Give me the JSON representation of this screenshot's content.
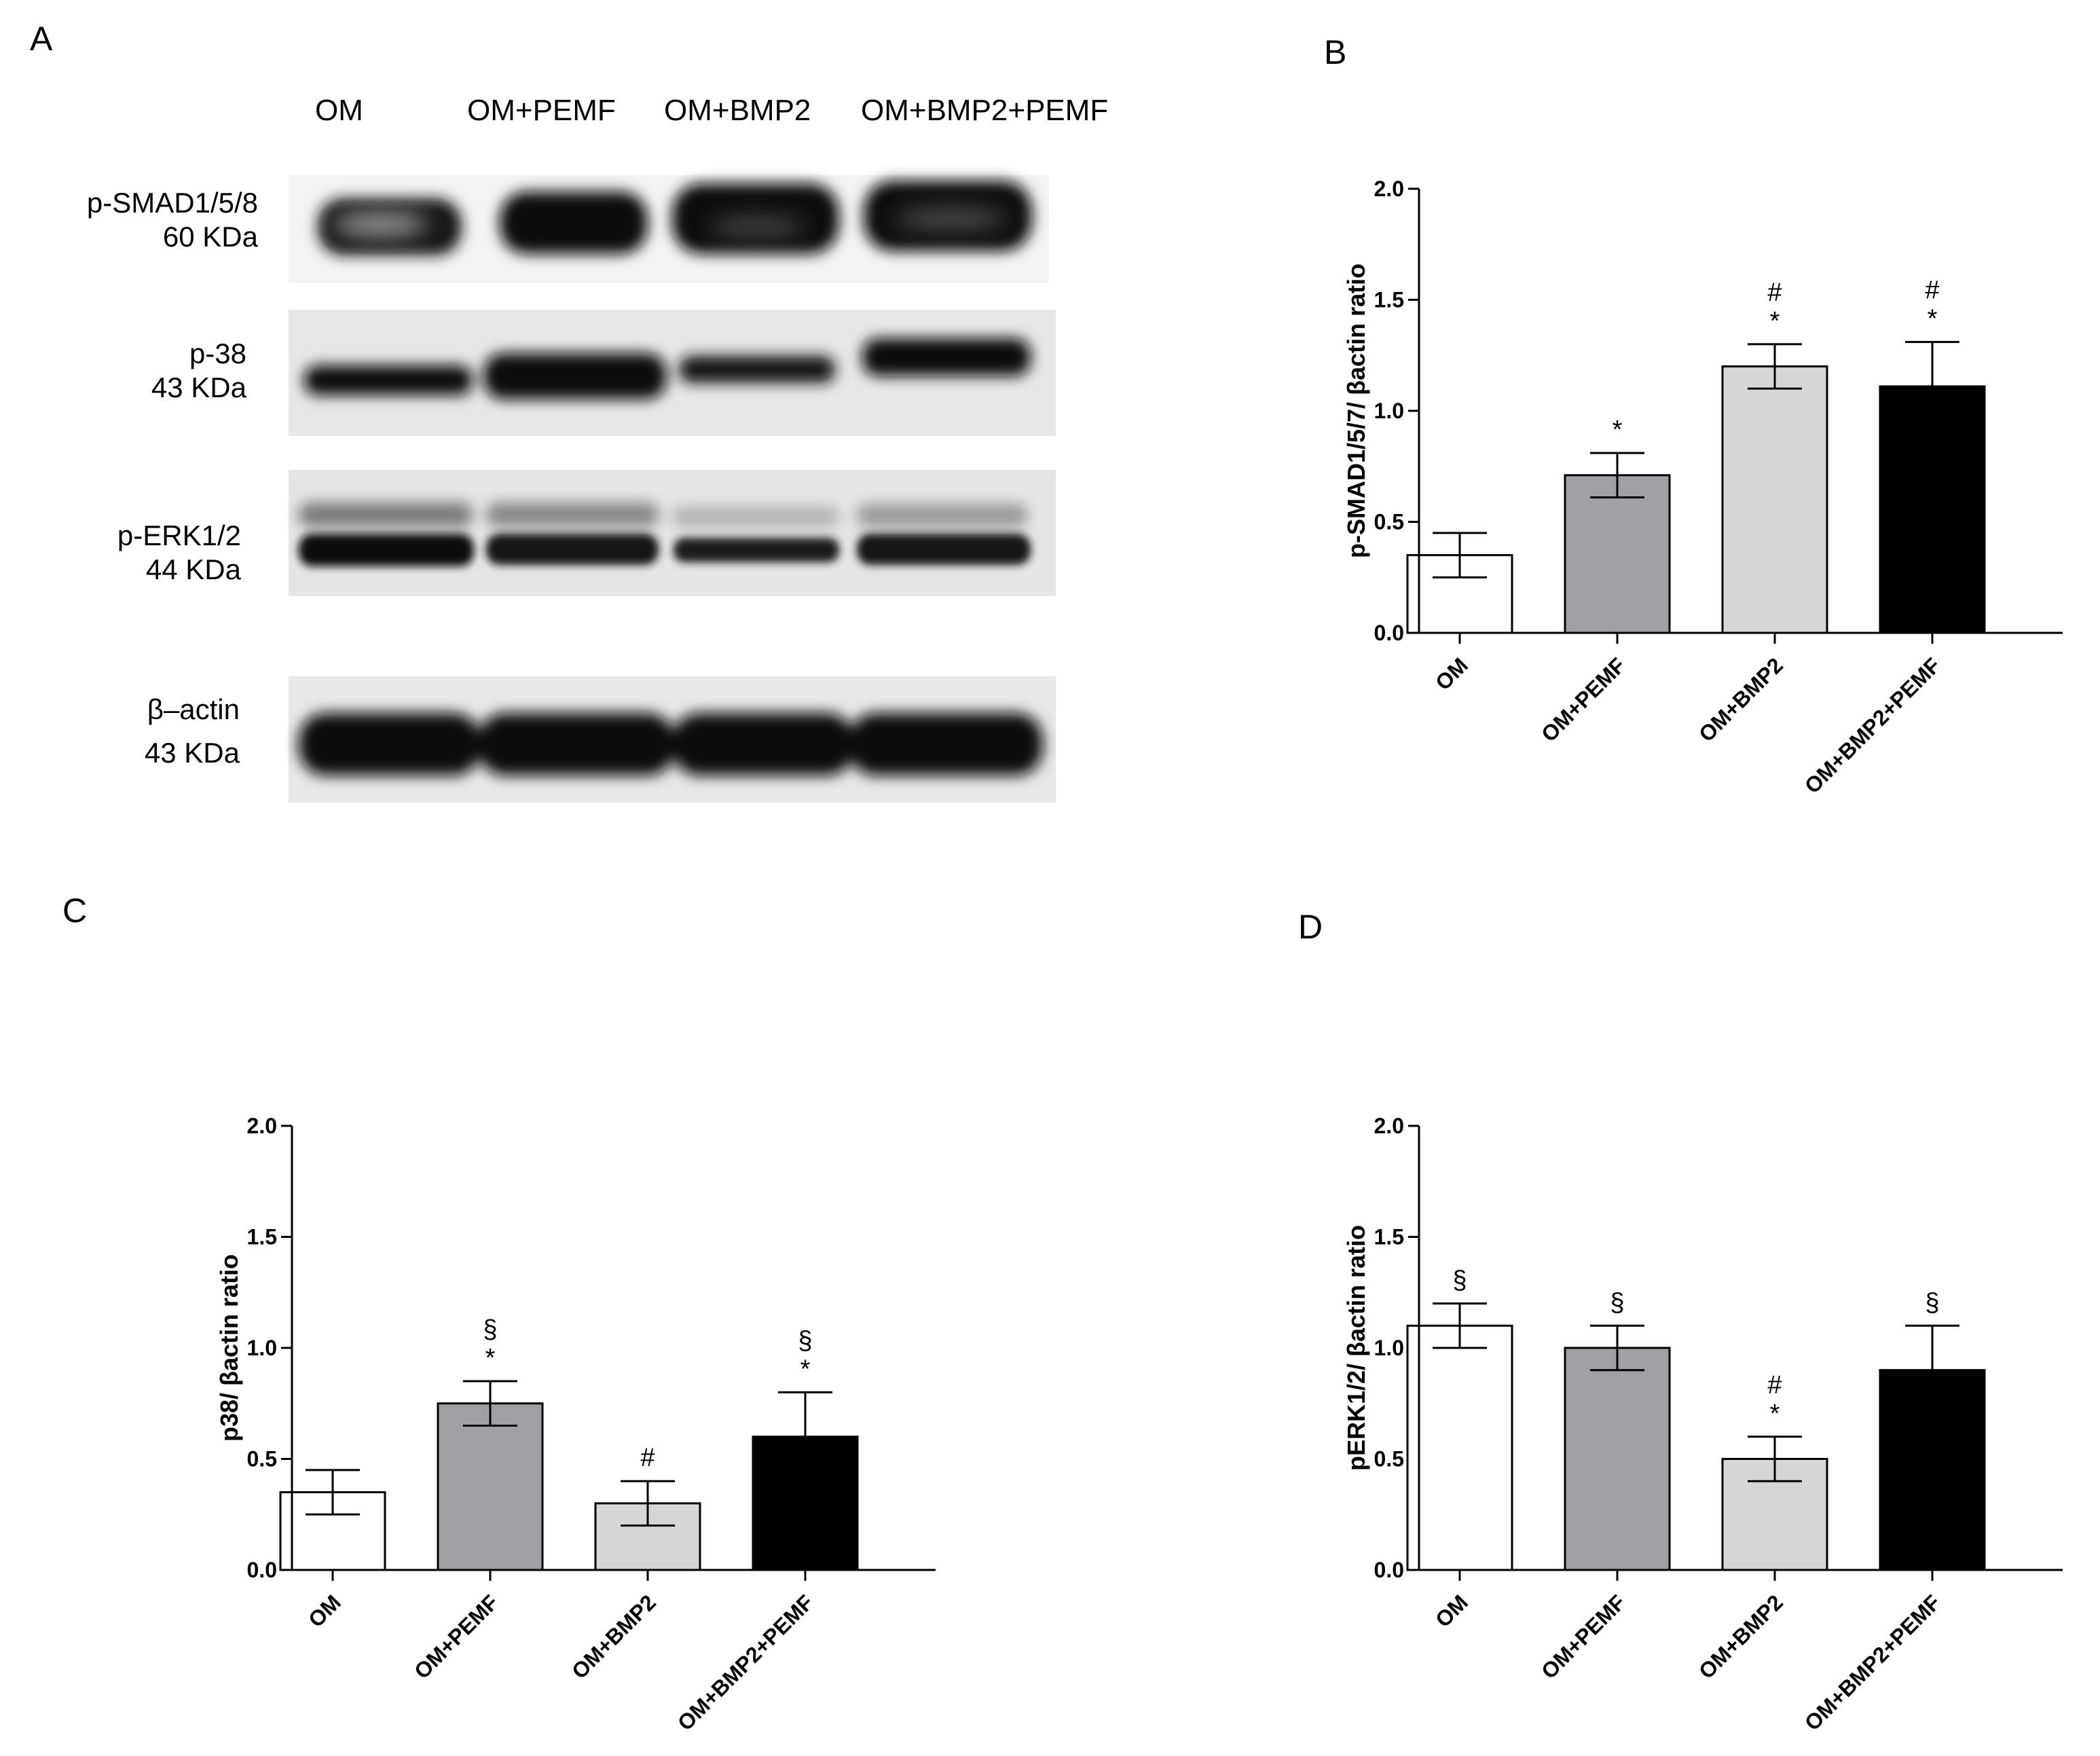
{
  "panels": {
    "A": {
      "letter": "A",
      "lanes": [
        "OM",
        "OM+PEMF",
        "OM+BMP2",
        "OM+BMP2+PEMF"
      ],
      "blots": [
        {
          "name": "p-SMAD1/5/8",
          "mw": "60 KDa"
        },
        {
          "name": "p-38",
          "mw": "43 KDa"
        },
        {
          "name": "p-ERK1/2",
          "mw": "44 KDa"
        },
        {
          "name": "β–actin",
          "mw": "43 KDa"
        }
      ]
    },
    "B": {
      "letter": "B"
    },
    "C": {
      "letter": "C"
    },
    "D": {
      "letter": "D"
    }
  },
  "colors": {
    "OM": "#ffffff",
    "OM+PEMF": "#a0a0a5",
    "OM+BMP2": "#d6d6d6",
    "OM+BMP2+PEMF": "#000000"
  },
  "chart_data": [
    {
      "panel": "B",
      "type": "bar",
      "categories": [
        "OM",
        "OM+PEMF",
        "OM+BMP2",
        "OM+BMP2+PEMF"
      ],
      "values": [
        0.35,
        0.71,
        1.2,
        1.11
      ],
      "errors": [
        0.1,
        0.1,
        0.1,
        0.2
      ],
      "annotations": [
        [],
        [
          "*"
        ],
        [
          "#",
          "*"
        ],
        [
          "#",
          "*"
        ]
      ],
      "ylabel": "p-SMAD1/5/7/ βactin ratio",
      "ylim": [
        0,
        2.0
      ],
      "yticks": [
        "0.0",
        "0.5",
        "1.0",
        "1.5",
        "2.0"
      ]
    },
    {
      "panel": "C",
      "type": "bar",
      "categories": [
        "OM",
        "OM+PEMF",
        "OM+BMP2",
        "OM+BMP2+PEMF"
      ],
      "values": [
        0.35,
        0.75,
        0.3,
        0.6
      ],
      "errors": [
        0.1,
        0.1,
        0.1,
        0.2
      ],
      "annotations": [
        [],
        [
          "§",
          "*"
        ],
        [
          "#"
        ],
        [
          "§",
          "*"
        ]
      ],
      "ylabel": "p38/ βactin ratio",
      "ylim": [
        0,
        2.0
      ],
      "yticks": [
        "0.0",
        "0.5",
        "1.0",
        "1.5",
        "2.0"
      ]
    },
    {
      "panel": "D",
      "type": "bar",
      "categories": [
        "OM",
        "OM+PEMF",
        "OM+BMP2",
        "OM+BMP2+PEMF"
      ],
      "values": [
        1.1,
        1.0,
        0.5,
        0.9
      ],
      "errors": [
        0.1,
        0.1,
        0.1,
        0.2
      ],
      "annotations": [
        [
          "§"
        ],
        [
          "§"
        ],
        [
          "#",
          "*"
        ],
        [
          "§"
        ]
      ],
      "ylabel": "pERK1/2/ βactin ratio",
      "ylim": [
        0,
        2.0
      ],
      "yticks": [
        "0.0",
        "0.5",
        "1.0",
        "1.5",
        "2.0"
      ]
    }
  ]
}
